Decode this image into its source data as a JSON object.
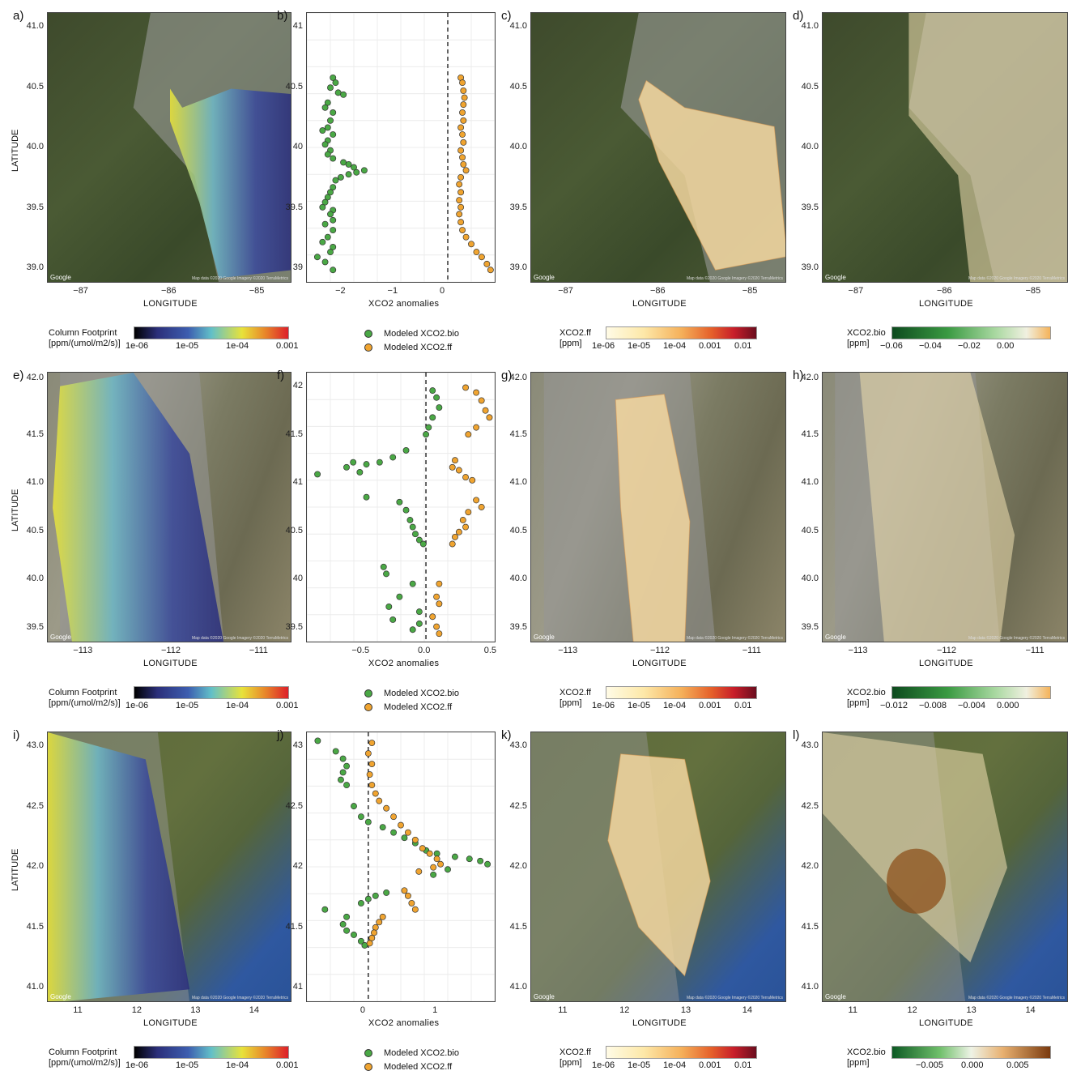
{
  "labels": {
    "lat_title": "LATITUDE",
    "lon_title": "LONGITUDE",
    "xco2_title": "XCO2 anomalies",
    "google": "Google",
    "mapdata": "Map data ©2020 Google  Imagery ©2020 TerraMetrics"
  },
  "legends": {
    "footprint_title": "Column Footprint\n[ppm/(umol/m2/s)]",
    "footprint_ticks": [
      "1e-06",
      "1e-05",
      "1e-04",
      "0.001"
    ],
    "ff_title": "XCO2.ff\n[ppm]",
    "ff_ticks": [
      "1e-06",
      "1e-05",
      "1e-04",
      "0.001",
      "0.01"
    ],
    "bio_title": "XCO2.bio\n[ppm]",
    "bio_ticks_row1": [
      "−0.06",
      "−0.04",
      "−0.02",
      "0.00"
    ],
    "bio_ticks_row2": [
      "−0.012",
      "−0.008",
      "−0.004",
      "0.000"
    ],
    "bio_ticks_row3": [
      "−0.005",
      "0.000",
      "0.005"
    ],
    "scatter_bio": "Modeled XCO2.bio",
    "scatter_ff": "Modeled XCO2.ff"
  },
  "rows": [
    {
      "panel_labels": [
        "a)",
        "b)",
        "c)",
        "d)"
      ],
      "lat_ticks": [
        "41.0",
        "40.5",
        "40.0",
        "39.5",
        "39.0"
      ],
      "lon_ticks": [
        "−87",
        "−86",
        "−85"
      ],
      "scatter_y_ticks": [
        "41",
        "40.5",
        "40",
        "39.5",
        "39"
      ],
      "scatter_x_ticks": [
        "−2",
        "−1",
        "0"
      ]
    },
    {
      "panel_labels": [
        "e)",
        "f)",
        "g)",
        "h)"
      ],
      "lat_ticks": [
        "42.0",
        "41.5",
        "41.0",
        "40.5",
        "40.0",
        "39.5"
      ],
      "lon_ticks": [
        "−113",
        "−112",
        "−111"
      ],
      "scatter_y_ticks": [
        "42",
        "41.5",
        "41",
        "40.5",
        "40",
        "39.5"
      ],
      "scatter_x_ticks": [
        "−0.5",
        "0.0",
        "0.5"
      ]
    },
    {
      "panel_labels": [
        "i)",
        "j)",
        "k)",
        "l)"
      ],
      "lat_ticks": [
        "43.0",
        "42.5",
        "42.0",
        "41.5",
        "41.0"
      ],
      "lon_ticks": [
        "11",
        "12",
        "13",
        "14"
      ],
      "scatter_y_ticks": [
        "43",
        "42.5",
        "42",
        "41.5",
        "41"
      ],
      "scatter_x_ticks": [
        "0",
        "1"
      ]
    }
  ],
  "colors": {
    "bio_point": "#4aa845",
    "ff_point": "#f0a430",
    "satellite_dark": "#3d4a2a",
    "footprint_low": "#2b2f7a",
    "footprint_high": "#e8e23a"
  },
  "chart_data": [
    {
      "type": "scatter",
      "panel": "b)",
      "xlabel": "XCO2 anomalies",
      "xlim": [
        -2.7,
        0.9
      ],
      "ylim": [
        38.7,
        41.4
      ],
      "series": [
        {
          "name": "Modeled XCO2.bio",
          "points": [
            [
              -2.2,
              40.75
            ],
            [
              -2.15,
              40.7
            ],
            [
              -2.25,
              40.65
            ],
            [
              -2.1,
              40.6
            ],
            [
              -2.0,
              40.58
            ],
            [
              -2.3,
              40.5
            ],
            [
              -2.35,
              40.45
            ],
            [
              -2.2,
              40.4
            ],
            [
              -2.25,
              40.32
            ],
            [
              -2.3,
              40.25
            ],
            [
              -2.4,
              40.22
            ],
            [
              -2.2,
              40.18
            ],
            [
              -2.3,
              40.12
            ],
            [
              -2.35,
              40.08
            ],
            [
              -2.25,
              40.02
            ],
            [
              -2.3,
              39.98
            ],
            [
              -2.2,
              39.94
            ],
            [
              -2.0,
              39.9
            ],
            [
              -1.9,
              39.88
            ],
            [
              -1.8,
              39.85
            ],
            [
              -1.6,
              39.82
            ],
            [
              -1.75,
              39.8
            ],
            [
              -1.9,
              39.78
            ],
            [
              -2.05,
              39.75
            ],
            [
              -2.15,
              39.72
            ],
            [
              -2.2,
              39.65
            ],
            [
              -2.25,
              39.6
            ],
            [
              -2.3,
              39.55
            ],
            [
              -2.35,
              39.5
            ],
            [
              -2.4,
              39.45
            ],
            [
              -2.2,
              39.42
            ],
            [
              -2.25,
              39.38
            ],
            [
              -2.2,
              39.32
            ],
            [
              -2.35,
              39.28
            ],
            [
              -2.2,
              39.22
            ],
            [
              -2.3,
              39.15
            ],
            [
              -2.4,
              39.1
            ],
            [
              -2.2,
              39.05
            ],
            [
              -2.25,
              39.0
            ],
            [
              -2.5,
              38.95
            ],
            [
              -2.35,
              38.9
            ],
            [
              -2.2,
              38.82
            ]
          ]
        },
        {
          "name": "Modeled XCO2.ff",
          "points": [
            [
              0.25,
              40.75
            ],
            [
              0.28,
              40.7
            ],
            [
              0.3,
              40.62
            ],
            [
              0.32,
              40.55
            ],
            [
              0.3,
              40.48
            ],
            [
              0.28,
              40.4
            ],
            [
              0.3,
              40.32
            ],
            [
              0.25,
              40.25
            ],
            [
              0.28,
              40.18
            ],
            [
              0.3,
              40.1
            ],
            [
              0.25,
              40.02
            ],
            [
              0.28,
              39.95
            ],
            [
              0.3,
              39.88
            ],
            [
              0.35,
              39.82
            ],
            [
              0.25,
              39.75
            ],
            [
              0.22,
              39.68
            ],
            [
              0.25,
              39.6
            ],
            [
              0.22,
              39.52
            ],
            [
              0.25,
              39.45
            ],
            [
              0.22,
              39.38
            ],
            [
              0.25,
              39.3
            ],
            [
              0.28,
              39.22
            ],
            [
              0.35,
              39.15
            ],
            [
              0.45,
              39.08
            ],
            [
              0.55,
              39.0
            ],
            [
              0.65,
              38.95
            ],
            [
              0.75,
              38.88
            ],
            [
              0.82,
              38.82
            ]
          ]
        }
      ]
    },
    {
      "type": "scatter",
      "panel": "f)",
      "xlabel": "XCO2 anomalies",
      "xlim": [
        -0.9,
        0.52
      ],
      "ylim": [
        39.4,
        42.1
      ],
      "series": [
        {
          "name": "Modeled XCO2.bio",
          "points": [
            [
              0.05,
              41.92
            ],
            [
              0.08,
              41.85
            ],
            [
              0.1,
              41.75
            ],
            [
              0.05,
              41.65
            ],
            [
              0.02,
              41.55
            ],
            [
              0.0,
              41.48
            ],
            [
              -0.15,
              41.32
            ],
            [
              -0.25,
              41.25
            ],
            [
              -0.35,
              41.2
            ],
            [
              -0.45,
              41.18
            ],
            [
              -0.55,
              41.2
            ],
            [
              -0.6,
              41.15
            ],
            [
              -0.5,
              41.1
            ],
            [
              -0.82,
              41.08
            ],
            [
              -0.45,
              40.85
            ],
            [
              -0.2,
              40.8
            ],
            [
              -0.15,
              40.72
            ],
            [
              -0.12,
              40.62
            ],
            [
              -0.1,
              40.55
            ],
            [
              -0.08,
              40.48
            ],
            [
              -0.05,
              40.42
            ],
            [
              -0.02,
              40.38
            ],
            [
              -0.32,
              40.15
            ],
            [
              -0.3,
              40.08
            ],
            [
              -0.1,
              39.98
            ],
            [
              -0.2,
              39.85
            ],
            [
              -0.28,
              39.75
            ],
            [
              -0.05,
              39.7
            ],
            [
              -0.25,
              39.62
            ],
            [
              -0.05,
              39.58
            ],
            [
              -0.1,
              39.52
            ]
          ]
        },
        {
          "name": "Modeled XCO2.ff",
          "points": [
            [
              0.3,
              41.95
            ],
            [
              0.38,
              41.9
            ],
            [
              0.42,
              41.82
            ],
            [
              0.45,
              41.72
            ],
            [
              0.48,
              41.65
            ],
            [
              0.38,
              41.55
            ],
            [
              0.32,
              41.48
            ],
            [
              0.22,
              41.22
            ],
            [
              0.2,
              41.15
            ],
            [
              0.25,
              41.12
            ],
            [
              0.3,
              41.05
            ],
            [
              0.35,
              41.02
            ],
            [
              0.38,
              40.82
            ],
            [
              0.42,
              40.75
            ],
            [
              0.32,
              40.7
            ],
            [
              0.28,
              40.62
            ],
            [
              0.3,
              40.55
            ],
            [
              0.25,
              40.5
            ],
            [
              0.22,
              40.45
            ],
            [
              0.2,
              40.38
            ],
            [
              0.1,
              39.98
            ],
            [
              0.08,
              39.85
            ],
            [
              0.1,
              39.78
            ],
            [
              0.05,
              39.65
            ],
            [
              0.08,
              39.55
            ],
            [
              0.1,
              39.48
            ]
          ]
        }
      ]
    },
    {
      "type": "scatter",
      "panel": "j)",
      "xlabel": "XCO2 anomalies",
      "xlim": [
        -0.85,
        1.75
      ],
      "ylim": [
        40.85,
        43.4
      ],
      "series": [
        {
          "name": "Modeled XCO2.bio",
          "points": [
            [
              -0.7,
              43.32
            ],
            [
              -0.45,
              43.22
            ],
            [
              -0.35,
              43.15
            ],
            [
              -0.3,
              43.08
            ],
            [
              -0.35,
              43.02
            ],
            [
              -0.38,
              42.95
            ],
            [
              -0.3,
              42.9
            ],
            [
              -0.2,
              42.7
            ],
            [
              -0.1,
              42.6
            ],
            [
              0.0,
              42.55
            ],
            [
              0.2,
              42.5
            ],
            [
              0.35,
              42.45
            ],
            [
              0.5,
              42.4
            ],
            [
              0.65,
              42.35
            ],
            [
              0.8,
              42.28
            ],
            [
              0.95,
              42.25
            ],
            [
              1.2,
              42.22
            ],
            [
              1.4,
              42.2
            ],
            [
              1.55,
              42.18
            ],
            [
              1.65,
              42.15
            ],
            [
              1.1,
              42.1
            ],
            [
              0.9,
              42.05
            ],
            [
              0.25,
              41.88
            ],
            [
              0.1,
              41.85
            ],
            [
              0.0,
              41.82
            ],
            [
              -0.1,
              41.78
            ],
            [
              -0.6,
              41.72
            ],
            [
              -0.3,
              41.65
            ],
            [
              -0.35,
              41.58
            ],
            [
              -0.3,
              41.52
            ],
            [
              -0.2,
              41.48
            ],
            [
              -0.1,
              41.42
            ],
            [
              -0.05,
              41.38
            ]
          ]
        },
        {
          "name": "Modeled XCO2.ff",
          "points": [
            [
              0.05,
              43.3
            ],
            [
              0.0,
              43.2
            ],
            [
              0.05,
              43.1
            ],
            [
              0.02,
              43.0
            ],
            [
              0.05,
              42.9
            ],
            [
              0.1,
              42.82
            ],
            [
              0.15,
              42.75
            ],
            [
              0.25,
              42.68
            ],
            [
              0.35,
              42.6
            ],
            [
              0.45,
              42.52
            ],
            [
              0.55,
              42.45
            ],
            [
              0.65,
              42.38
            ],
            [
              0.75,
              42.3
            ],
            [
              0.85,
              42.25
            ],
            [
              0.95,
              42.2
            ],
            [
              1.0,
              42.15
            ],
            [
              0.9,
              42.12
            ],
            [
              0.7,
              42.08
            ],
            [
              0.5,
              41.9
            ],
            [
              0.55,
              41.85
            ],
            [
              0.6,
              41.78
            ],
            [
              0.65,
              41.72
            ],
            [
              0.2,
              41.65
            ],
            [
              0.15,
              41.6
            ],
            [
              0.1,
              41.55
            ],
            [
              0.08,
              41.5
            ],
            [
              0.05,
              41.45
            ],
            [
              0.02,
              41.4
            ]
          ]
        }
      ]
    }
  ]
}
